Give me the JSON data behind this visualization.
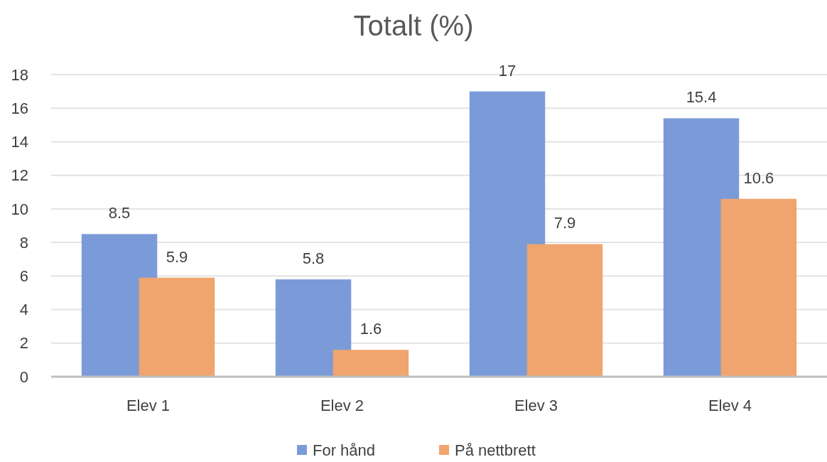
{
  "chart_data": {
    "type": "bar",
    "title": "Totalt (%)",
    "categories": [
      "Elev 1",
      "Elev 2",
      "Elev 3",
      "Elev 4"
    ],
    "series": [
      {
        "name": "For hånd",
        "color": "#7b9bd8",
        "values": [
          8.5,
          5.8,
          17,
          15.4
        ]
      },
      {
        "name": "På nettbrett",
        "color": "#f0a46e",
        "values": [
          5.9,
          1.6,
          7.9,
          10.6
        ]
      }
    ],
    "ylim": [
      0,
      18
    ],
    "yticks": [
      0,
      2,
      4,
      6,
      8,
      10,
      12,
      14,
      16,
      18
    ],
    "grid": "y",
    "legend": "bottom",
    "data_labels": true
  }
}
